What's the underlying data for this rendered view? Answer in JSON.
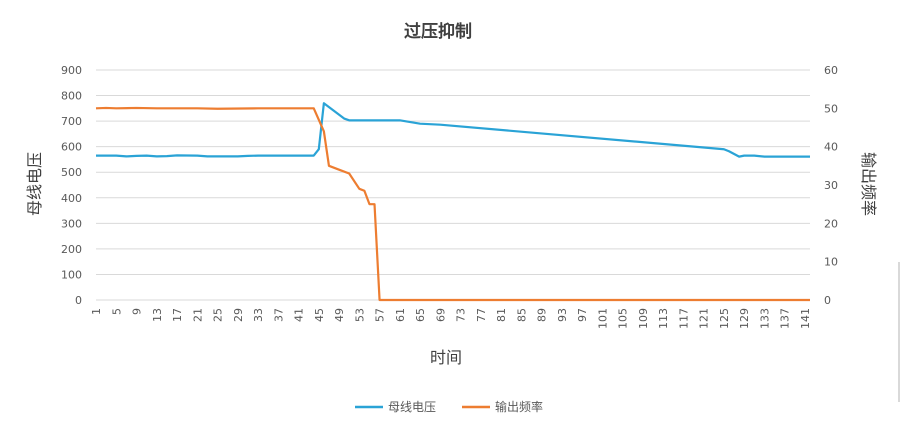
{
  "chart_data": {
    "type": "line",
    "title": "过压抑制",
    "xlabel": "时间",
    "ylabel_left": "母线电压",
    "ylabel_right": "输出频率",
    "ylim_left": [
      0,
      900
    ],
    "yticks_left": [
      "0",
      "100",
      "200",
      "300",
      "400",
      "500",
      "600",
      "700",
      "800",
      "900"
    ],
    "ylim_right": [
      0,
      60
    ],
    "yticks_right": [
      "0",
      "10",
      "20",
      "30",
      "40",
      "50",
      "60"
    ],
    "x_range": [
      1,
      142
    ],
    "x_tick_labels": [
      "1",
      "5",
      "9",
      "13",
      "17",
      "21",
      "25",
      "29",
      "33",
      "37",
      "41",
      "45",
      "49",
      "53",
      "57",
      "61",
      "65",
      "69",
      "73",
      "77",
      "81",
      "85",
      "89",
      "93",
      "97",
      "101",
      "105",
      "109",
      "113",
      "117",
      "121",
      "125",
      "129",
      "133",
      "137",
      "141"
    ],
    "grid": true,
    "legend_position": "bottom",
    "series": [
      {
        "name": "母线电压",
        "axis": "left",
        "color": "#2aa3d6",
        "points": [
          [
            1,
            565
          ],
          [
            5,
            565
          ],
          [
            7,
            562
          ],
          [
            9,
            564
          ],
          [
            11,
            565
          ],
          [
            13,
            562
          ],
          [
            15,
            563
          ],
          [
            17,
            566
          ],
          [
            21,
            565
          ],
          [
            23,
            562
          ],
          [
            29,
            562
          ],
          [
            31,
            564
          ],
          [
            33,
            565
          ],
          [
            44,
            565
          ],
          [
            45,
            590
          ],
          [
            46,
            770
          ],
          [
            50,
            710
          ],
          [
            51,
            703
          ],
          [
            57,
            703
          ],
          [
            61,
            703
          ],
          [
            65,
            690
          ],
          [
            69,
            686
          ],
          [
            125,
            590
          ],
          [
            126,
            582
          ],
          [
            128,
            561
          ],
          [
            129,
            565
          ],
          [
            131,
            565
          ],
          [
            133,
            561
          ],
          [
            142,
            561
          ]
        ]
      },
      {
        "name": "输出频率",
        "axis": "right",
        "color": "#ed7d31",
        "points": [
          [
            1,
            50
          ],
          [
            3,
            50.1
          ],
          [
            5,
            50
          ],
          [
            9,
            50.1
          ],
          [
            13,
            50
          ],
          [
            21,
            50
          ],
          [
            25,
            49.9
          ],
          [
            33,
            50
          ],
          [
            44,
            50
          ],
          [
            45,
            47
          ],
          [
            46,
            44
          ],
          [
            47,
            35
          ],
          [
            49,
            34
          ],
          [
            51,
            33
          ],
          [
            53,
            29
          ],
          [
            54,
            28.5
          ],
          [
            55,
            25
          ],
          [
            56,
            25
          ],
          [
            57,
            0
          ],
          [
            142,
            0
          ]
        ]
      }
    ]
  }
}
